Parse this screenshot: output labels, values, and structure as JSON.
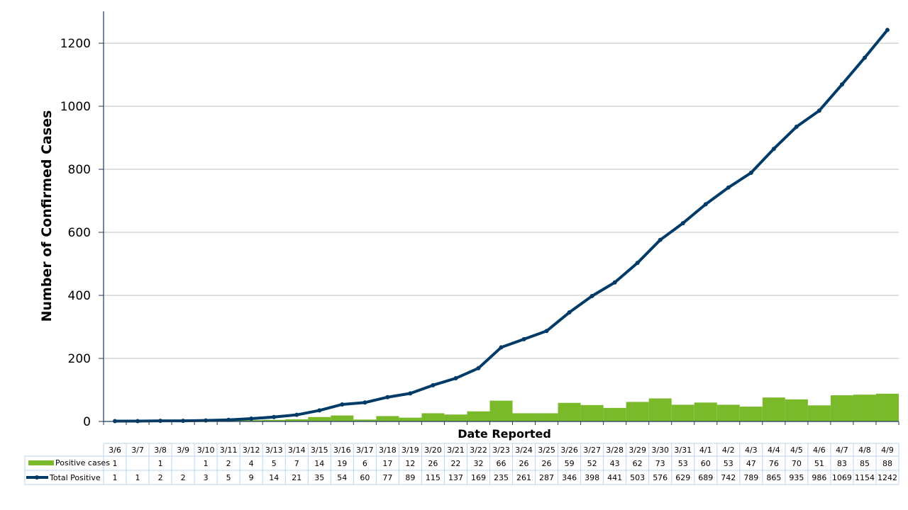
{
  "chart_data": {
    "type": "bar+line",
    "title": "",
    "xlabel": "Date Reported",
    "ylabel": "Number of Confirmed Cases",
    "ylim": [
      0,
      1300
    ],
    "yticks": [
      0,
      200,
      400,
      600,
      800,
      1000,
      1200
    ],
    "grid": true,
    "legend_position": "data-table",
    "categories": [
      "3/6",
      "3/7",
      "3/8",
      "3/9",
      "3/10",
      "3/11",
      "3/12",
      "3/13",
      "3/14",
      "3/15",
      "3/16",
      "3/17",
      "3/18",
      "3/19",
      "3/20",
      "3/21",
      "3/22",
      "3/23",
      "3/24",
      "3/25",
      "3/26",
      "3/27",
      "3/28",
      "3/29",
      "3/30",
      "3/31",
      "4/1",
      "4/2",
      "4/3",
      "4/4",
      "4/5",
      "4/6",
      "4/7",
      "4/8",
      "4/9"
    ],
    "series": [
      {
        "name": "Positive cases",
        "type": "bar",
        "color": "#7AB929",
        "values": [
          1,
          null,
          1,
          null,
          1,
          2,
          4,
          5,
          7,
          14,
          19,
          6,
          17,
          12,
          26,
          22,
          32,
          66,
          26,
          26,
          59,
          52,
          43,
          62,
          73,
          53,
          60,
          53,
          47,
          76,
          70,
          51,
          83,
          85,
          88
        ]
      },
      {
        "name": "Total Positive",
        "type": "line",
        "color": "#003B68",
        "values": [
          1,
          1,
          2,
          2,
          3,
          5,
          9,
          14,
          21,
          35,
          54,
          60,
          77,
          89,
          115,
          137,
          169,
          235,
          261,
          287,
          346,
          398,
          441,
          503,
          576,
          629,
          689,
          742,
          789,
          865,
          935,
          986,
          1069,
          1154,
          1242
        ]
      }
    ]
  },
  "colors": {
    "axis": "#1F3A5A",
    "grid": "#BFBFBF",
    "table_border": "#BDD7EE"
  }
}
